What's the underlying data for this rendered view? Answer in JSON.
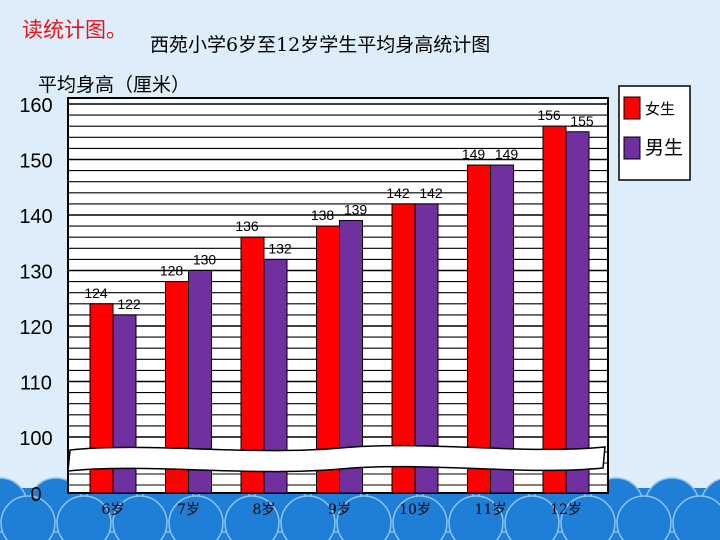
{
  "instruction": "读统计图。",
  "colors": {
    "background": "#ddeefa",
    "female": "#ff0000",
    "male": "#7030a0",
    "wave": "#1f7fd6",
    "plot_bg": "#ffffff"
  },
  "chart_data": {
    "type": "bar",
    "title": "西苑小学6岁至12岁学生平均身高统计图",
    "ylabel": "平均身高（厘米）",
    "xlabel": "",
    "categories": [
      "6岁",
      "7岁",
      "8岁",
      "9岁",
      "10岁",
      "11岁",
      "12岁"
    ],
    "series": [
      {
        "name": "女生",
        "values": [
          124,
          128,
          136,
          138,
          142,
          149,
          156
        ]
      },
      {
        "name": "男生",
        "values": [
          122,
          130,
          132,
          139,
          142,
          149,
          155
        ]
      }
    ],
    "ylim": [
      0,
      160
    ],
    "axis_break": {
      "from": 0,
      "to": 100
    },
    "yticks": [
      0,
      100,
      110,
      120,
      130,
      140,
      150,
      160
    ],
    "grid": true,
    "legend": "top-right"
  }
}
